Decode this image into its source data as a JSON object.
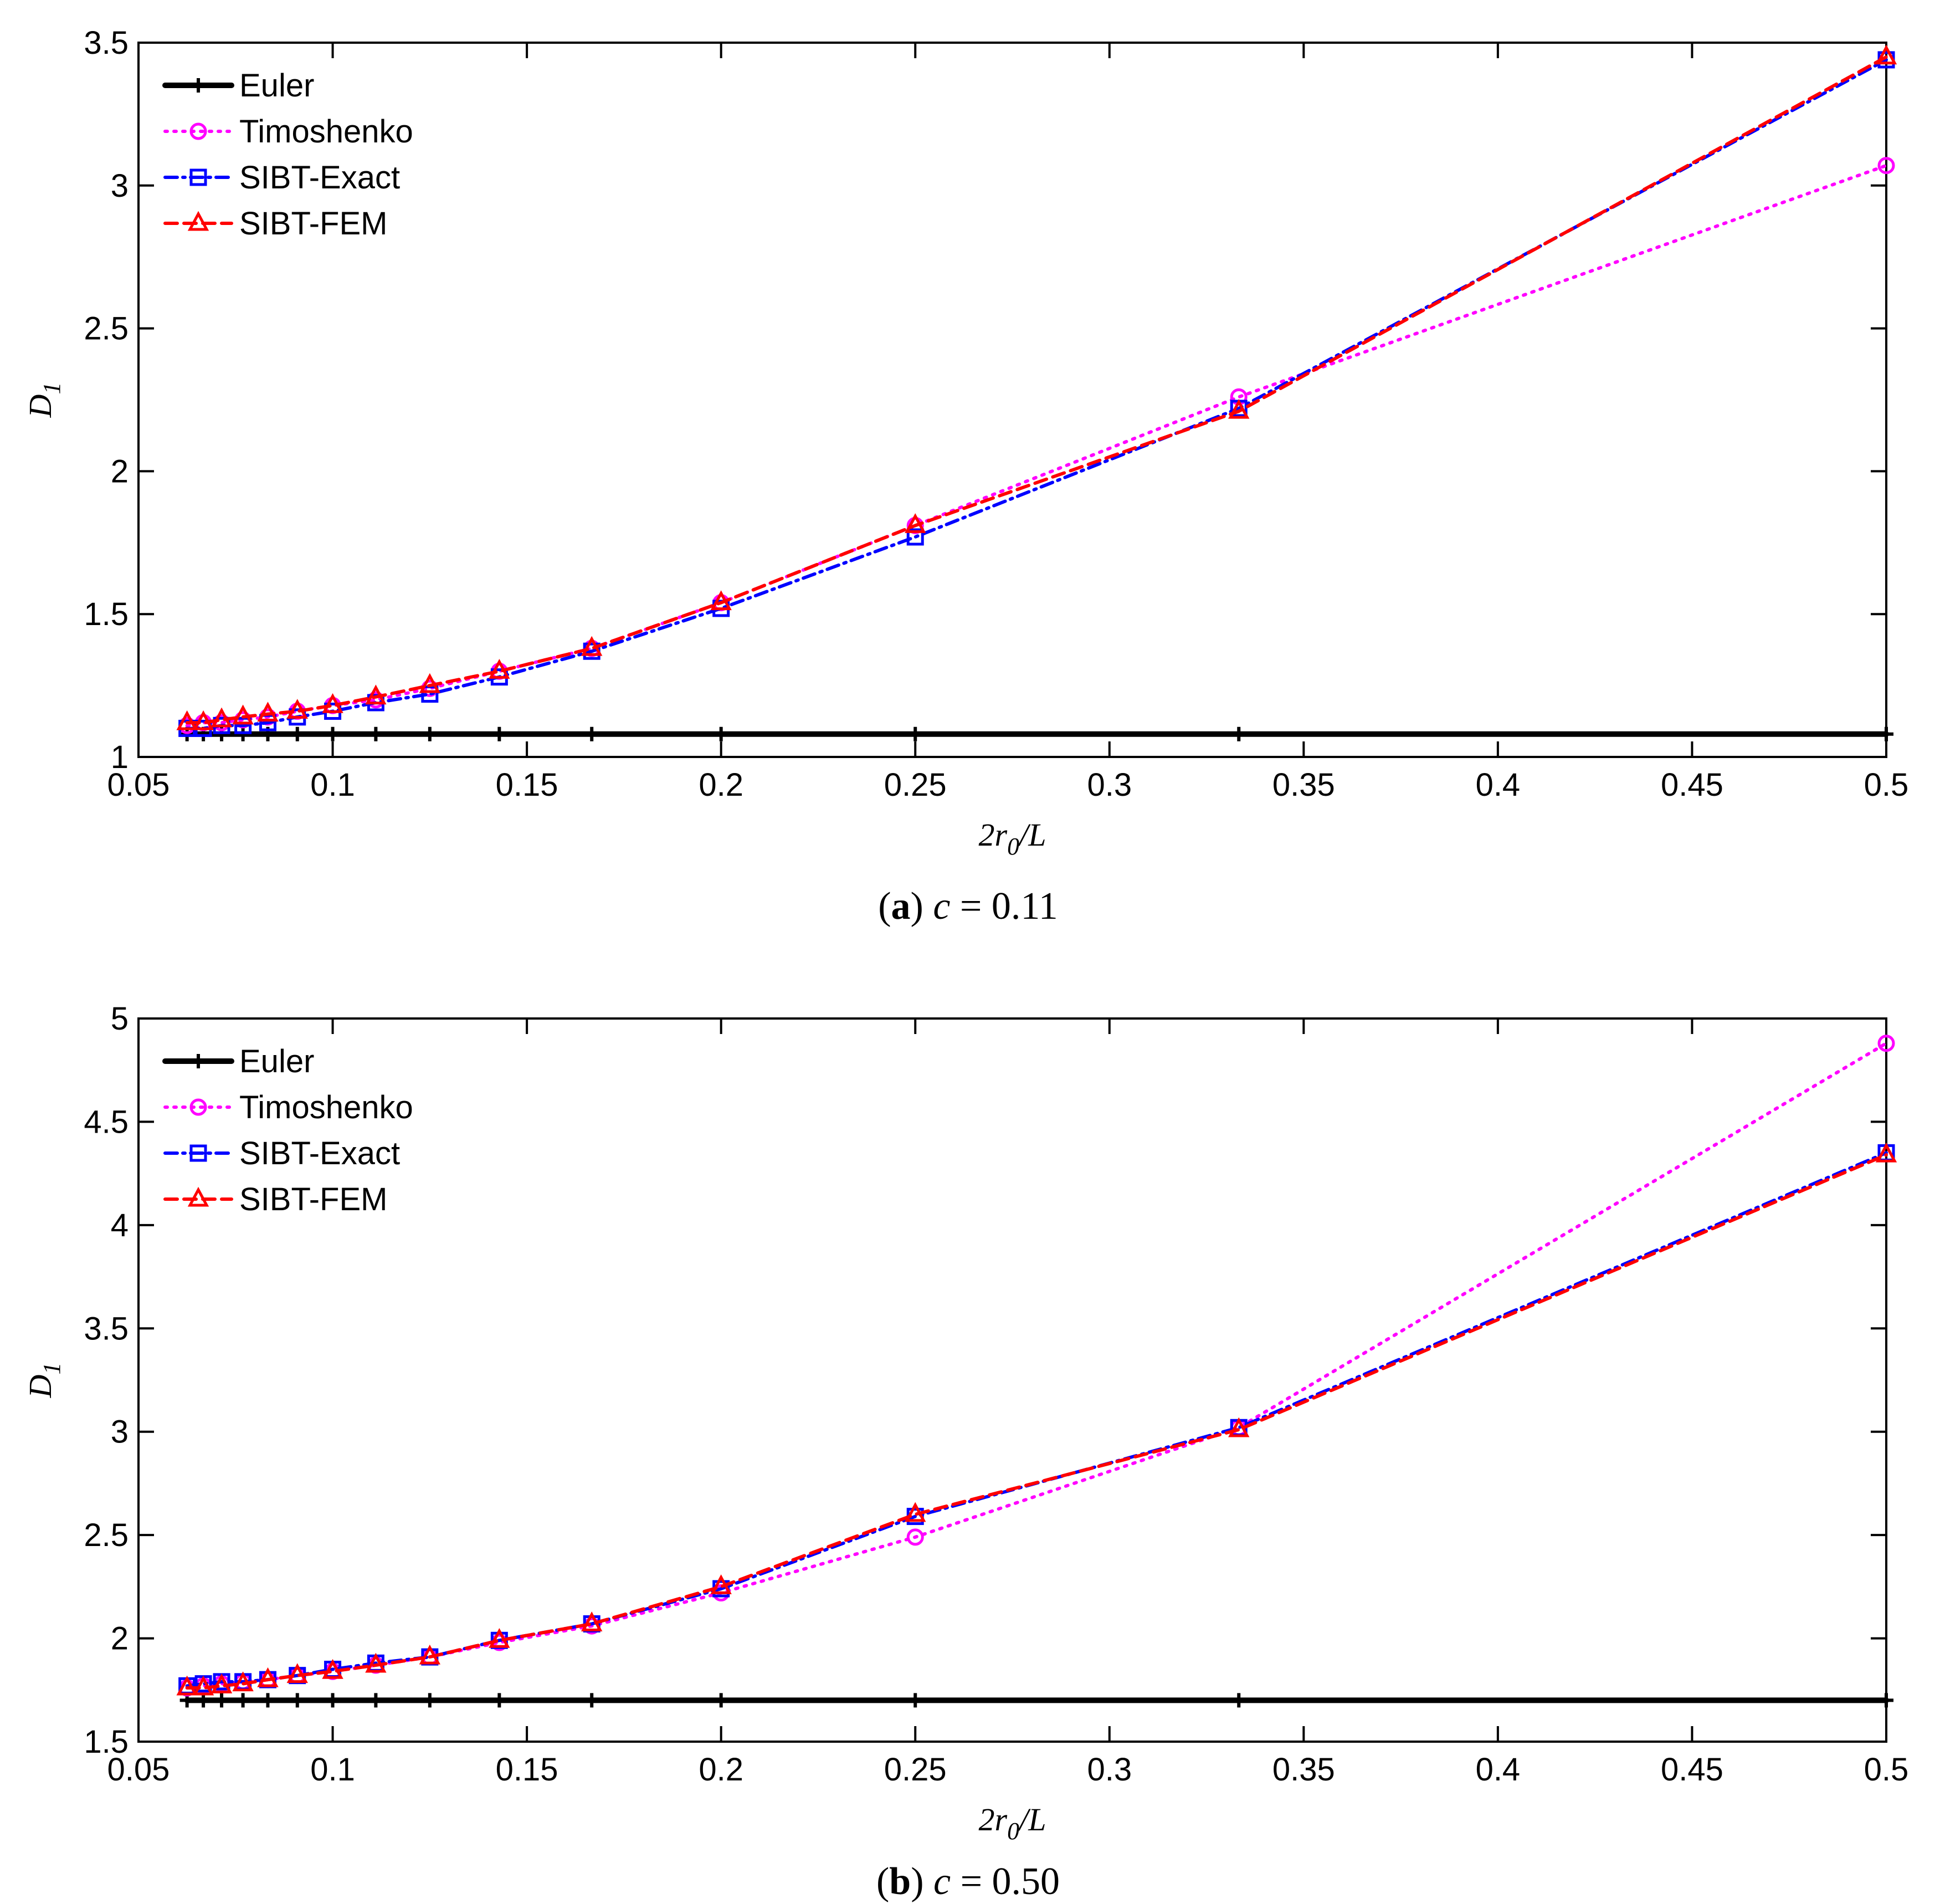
{
  "chart_data": [
    {
      "type": "line",
      "panel": "a",
      "caption": {
        "letter": "a",
        "text": "c = 0.11"
      },
      "xlabel": "2r0/L",
      "ylabel": "D1",
      "xlim": [
        0.05,
        0.5
      ],
      "ylim": [
        1,
        3.5
      ],
      "xticks": [
        0.05,
        0.1,
        0.15,
        0.2,
        0.25,
        0.3,
        0.35,
        0.4,
        0.45,
        0.5
      ],
      "xtick_labels": [
        "0.05",
        "0.1",
        "0.15",
        "0.2",
        "0.25",
        "0.3",
        "0.35",
        "0.4",
        "0.45",
        "0.5"
      ],
      "yticks": [
        1,
        1.5,
        2,
        2.5,
        3,
        3.5
      ],
      "ytick_labels": [
        "1",
        "1.5",
        "2",
        "2.5",
        "3",
        "3.5"
      ],
      "legend_position": "top-left",
      "x": [
        0.0625,
        0.0667,
        0.0714,
        0.0769,
        0.0833,
        0.0909,
        0.1,
        0.1111,
        0.125,
        0.1429,
        0.1667,
        0.2,
        0.25,
        0.3333,
        0.5
      ],
      "series": [
        {
          "name": "Euler",
          "color": "#000000",
          "marker": "plus",
          "dash": "",
          "width": 10,
          "values": [
            1.08,
            1.08,
            1.08,
            1.08,
            1.08,
            1.08,
            1.08,
            1.08,
            1.08,
            1.08,
            1.08,
            1.08,
            1.08,
            1.08,
            1.08
          ]
        },
        {
          "name": "Timoshenko",
          "color": "#ff00ff",
          "marker": "circle",
          "dash": "4 12",
          "width": 6,
          "values": [
            1.11,
            1.12,
            1.12,
            1.13,
            1.14,
            1.16,
            1.18,
            1.2,
            1.24,
            1.3,
            1.38,
            1.54,
            1.81,
            2.26,
            3.07
          ]
        },
        {
          "name": "SIBT-Exact",
          "color": "#0000ff",
          "marker": "square",
          "dash": "22 10 4 10",
          "width": 6,
          "values": [
            1.1,
            1.1,
            1.11,
            1.11,
            1.12,
            1.14,
            1.16,
            1.19,
            1.22,
            1.28,
            1.37,
            1.52,
            1.77,
            2.22,
            3.44
          ]
        },
        {
          "name": "SIBT-FEM",
          "color": "#ff0000",
          "marker": "triangle",
          "dash": "22 12",
          "width": 6,
          "values": [
            1.12,
            1.12,
            1.13,
            1.14,
            1.15,
            1.16,
            1.18,
            1.21,
            1.25,
            1.3,
            1.38,
            1.54,
            1.81,
            2.21,
            3.45
          ]
        }
      ]
    },
    {
      "type": "line",
      "panel": "b",
      "caption": {
        "letter": "b",
        "text": "c = 0.50"
      },
      "xlabel": "2r0/L",
      "ylabel": "D1",
      "xlim": [
        0.05,
        0.5
      ],
      "ylim": [
        1.5,
        5
      ],
      "xticks": [
        0.05,
        0.1,
        0.15,
        0.2,
        0.25,
        0.3,
        0.35,
        0.4,
        0.45,
        0.5
      ],
      "xtick_labels": [
        "0.05",
        "0.1",
        "0.15",
        "0.2",
        "0.25",
        "0.3",
        "0.35",
        "0.4",
        "0.45",
        "0.5"
      ],
      "yticks": [
        1.5,
        2,
        2.5,
        3,
        3.5,
        4,
        4.5,
        5
      ],
      "ytick_labels": [
        "1.5",
        "2",
        "2.5",
        "3",
        "3.5",
        "4",
        "4.5",
        "5"
      ],
      "legend_position": "top-left",
      "x": [
        0.0625,
        0.0667,
        0.0714,
        0.0769,
        0.0833,
        0.0909,
        0.1,
        0.1111,
        0.125,
        0.1429,
        0.1667,
        0.2,
        0.25,
        0.3333,
        0.5
      ],
      "series": [
        {
          "name": "Euler",
          "color": "#000000",
          "marker": "plus",
          "dash": "",
          "width": 10,
          "values": [
            1.7,
            1.7,
            1.7,
            1.7,
            1.7,
            1.7,
            1.7,
            1.7,
            1.7,
            1.7,
            1.7,
            1.7,
            1.7,
            1.7,
            1.7
          ]
        },
        {
          "name": "Timoshenko",
          "color": "#ff00ff",
          "marker": "circle",
          "dash": "4 12",
          "width": 6,
          "values": [
            1.76,
            1.77,
            1.78,
            1.79,
            1.8,
            1.82,
            1.84,
            1.87,
            1.91,
            1.98,
            2.06,
            2.22,
            2.49,
            3.02,
            4.88
          ]
        },
        {
          "name": "SIBT-Exact",
          "color": "#0000ff",
          "marker": "square",
          "dash": "22 10 4 10",
          "width": 6,
          "values": [
            1.77,
            1.78,
            1.79,
            1.79,
            1.8,
            1.82,
            1.85,
            1.88,
            1.91,
            1.99,
            2.07,
            2.24,
            2.59,
            3.02,
            4.35
          ]
        },
        {
          "name": "SIBT-FEM",
          "color": "#ff0000",
          "marker": "triangle",
          "dash": "22 12",
          "width": 6,
          "values": [
            1.76,
            1.76,
            1.77,
            1.78,
            1.8,
            1.82,
            1.84,
            1.87,
            1.91,
            1.99,
            2.07,
            2.25,
            2.6,
            3.01,
            4.34
          ]
        }
      ]
    }
  ]
}
